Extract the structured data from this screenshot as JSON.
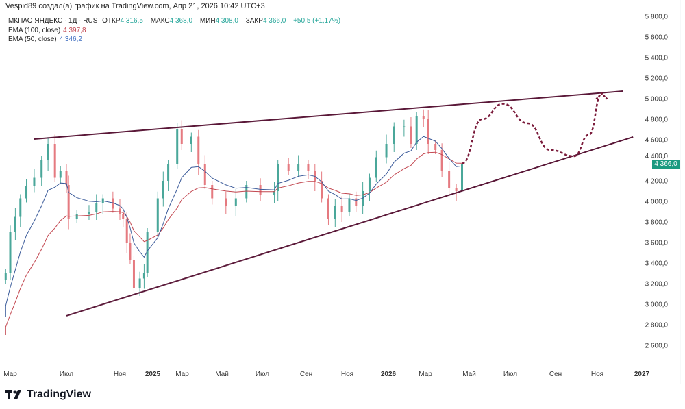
{
  "header": {
    "caption": "Vespid89 создал(а) график на TradingView.com, Апр 21, 2026 10:42 UTC+3"
  },
  "legend": {
    "symbol": "МКПАО ЯНДЕКС · 1Д · RUS",
    "open_label": "ОТКР",
    "open": "4 316,5",
    "high_label": "МАКС",
    "high": "4 368,0",
    "low_label": "МИН",
    "low": "4 308,0",
    "close_label": "ЗАКР",
    "close": "4 366,0",
    "change": "+50,5 (+1,17%)",
    "ema100_label": "EMA (100, close)",
    "ema100_value": "4 397,8",
    "ema50_label": "EMA (50, close)",
    "ema50_value": "4 346,2"
  },
  "price_tag": "4 366,0",
  "logo_text": "TradingView",
  "colors": {
    "up": "#4aa79a",
    "down": "#e57a80",
    "ema100": "#c2464f",
    "ema50": "#3b5b9a",
    "trendline": "#5a1838",
    "projection": "#7a1a3a",
    "price_tag": "#1a9a80"
  },
  "chart_data": {
    "type": "candlestick",
    "title": "МКПАО ЯНДЕКС · 1Д · RUS",
    "ylim": [
      2400,
      5900
    ],
    "y_ticks": [
      "5 800,0",
      "5 600,0",
      "5 400,0",
      "5 200,0",
      "5 000,0",
      "4 800,0",
      "4 600,0",
      "4 400,0",
      "4 200,0",
      "4 000,0",
      "3 800,0",
      "3 600,0",
      "3 400,0",
      "3 200,0",
      "3 000,0",
      "2 800,0",
      "2 600,0"
    ],
    "y_tick_values": [
      5800,
      5600,
      5400,
      5200,
      5000,
      4800,
      4600,
      4400,
      4200,
      4000,
      3800,
      3600,
      3400,
      3200,
      3000,
      2800,
      2600
    ],
    "x_ticks": [
      {
        "label": "Мар",
        "date": "2024-03-01"
      },
      {
        "label": "Июл",
        "date": "2024-07-01"
      },
      {
        "label": "Ноя",
        "date": "2024-11-01"
      },
      {
        "label": "2025",
        "date": "2025-01-01",
        "bold": true
      },
      {
        "label": "Мар",
        "date": "2025-03-01"
      },
      {
        "label": "Май",
        "date": "2025-05-01"
      },
      {
        "label": "Июл",
        "date": "2025-07-01"
      },
      {
        "label": "Сен",
        "date": "2025-09-01"
      },
      {
        "label": "Ноя",
        "date": "2025-11-01"
      },
      {
        "label": "2026",
        "date": "2026-01-01",
        "bold": true
      },
      {
        "label": "Мар",
        "date": "2026-03-01"
      },
      {
        "label": "Май",
        "date": "2026-05-01"
      },
      {
        "label": "Июл",
        "date": "2026-07-01"
      },
      {
        "label": "Сен",
        "date": "2026-09-01"
      },
      {
        "label": "Ноя",
        "date": "2026-11-01"
      },
      {
        "label": "2027",
        "date": "2027-01-01",
        "bold": true
      }
    ],
    "closes": [
      [
        "2024-02-20",
        3300
      ],
      [
        "2024-03-01",
        3700
      ],
      [
        "2024-03-12",
        3850
      ],
      [
        "2024-03-23",
        4030
      ],
      [
        "2024-04-05",
        4150
      ],
      [
        "2024-04-22",
        4230
      ],
      [
        "2024-05-08",
        4400
      ],
      [
        "2024-05-22",
        4560
      ],
      [
        "2024-06-06",
        4230
      ],
      [
        "2024-06-18",
        4300
      ],
      [
        "2024-07-01",
        4160
      ],
      [
        "2024-07-06",
        3830
      ],
      [
        "2024-07-25",
        3880
      ],
      [
        "2024-08-22",
        3900
      ],
      [
        "2024-09-08",
        3980
      ],
      [
        "2024-09-23",
        4030
      ],
      [
        "2024-10-16",
        3930
      ],
      [
        "2024-11-01",
        3880
      ],
      [
        "2024-11-07",
        3830
      ],
      [
        "2024-11-14",
        3600
      ],
      [
        "2024-11-20",
        3430
      ],
      [
        "2024-11-27",
        3160
      ],
      [
        "2024-12-08",
        3250
      ],
      [
        "2024-12-16",
        3300
      ],
      [
        "2024-12-22",
        3700
      ],
      [
        "2025-01-11",
        4030
      ],
      [
        "2025-01-22",
        4200
      ],
      [
        "2025-02-01",
        4360
      ],
      [
        "2025-02-19",
        4700
      ],
      [
        "2025-02-28",
        4560
      ],
      [
        "2025-03-15",
        4630
      ],
      [
        "2025-03-26",
        4360
      ],
      [
        "2025-04-05",
        4160
      ],
      [
        "2025-04-16",
        4030
      ],
      [
        "2025-05-07",
        3960
      ],
      [
        "2025-05-22",
        4030
      ],
      [
        "2025-06-07",
        4160
      ],
      [
        "2025-06-28",
        4060
      ],
      [
        "2025-07-18",
        4100
      ],
      [
        "2025-07-23",
        4360
      ],
      [
        "2025-08-07",
        4300
      ],
      [
        "2025-08-21",
        4360
      ],
      [
        "2025-09-04",
        4300
      ],
      [
        "2025-09-14",
        4200
      ],
      [
        "2025-09-24",
        4030
      ],
      [
        "2025-10-04",
        3830
      ],
      [
        "2025-10-14",
        3960
      ],
      [
        "2025-10-24",
        3900
      ],
      [
        "2025-11-04",
        4030
      ],
      [
        "2025-11-14",
        3960
      ],
      [
        "2025-11-24",
        4100
      ],
      [
        "2025-12-04",
        4230
      ],
      [
        "2025-12-14",
        4430
      ],
      [
        "2025-12-29",
        4560
      ],
      [
        "2026-01-10",
        4730
      ],
      [
        "2026-01-26",
        4730
      ],
      [
        "2026-02-06",
        4560
      ],
      [
        "2026-02-15",
        4830
      ],
      [
        "2026-02-26",
        4800
      ],
      [
        "2026-03-05",
        4560
      ],
      [
        "2026-03-15",
        4500
      ],
      [
        "2026-03-24",
        4300
      ],
      [
        "2026-04-03",
        4130
      ],
      [
        "2026-04-13",
        4100
      ],
      [
        "2026-04-21",
        4366
      ]
    ],
    "ema_seed": {
      "ema50": 2880,
      "ema100": 2700
    },
    "trendlines": [
      {
        "name": "upper",
        "from": [
          "2024-04-22",
          4607
        ],
        "to": [
          "2026-12-06",
          5073
        ]
      },
      {
        "name": "lower",
        "from": [
          "2024-07-01",
          2887
        ],
        "to": [
          "2026-12-20",
          4627
        ]
      }
    ],
    "projection": [
      [
        "2026-04-21",
        4370
      ],
      [
        "2026-05-20",
        4800
      ],
      [
        "2026-06-20",
        4950
      ],
      [
        "2026-07-25",
        4760
      ],
      [
        "2026-08-25",
        4500
      ],
      [
        "2026-09-28",
        4440
      ],
      [
        "2026-10-20",
        4650
      ],
      [
        "2026-11-07",
        5050
      ]
    ]
  }
}
